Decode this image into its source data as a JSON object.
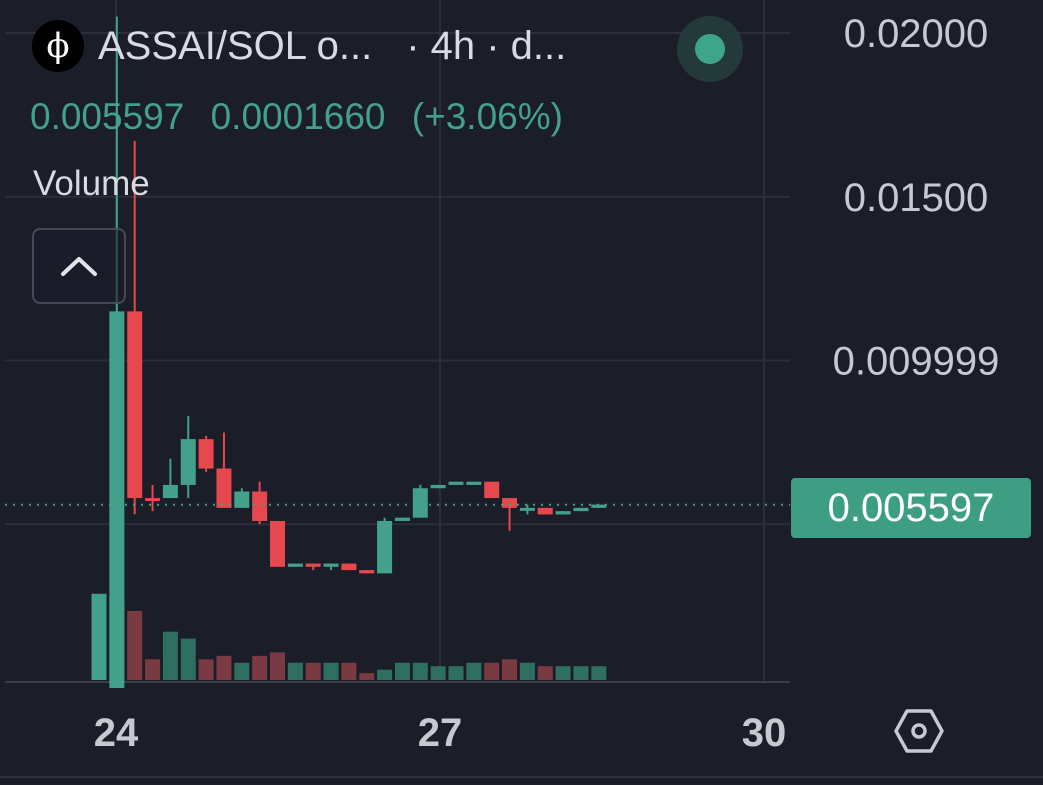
{
  "header": {
    "logo_glyph": "ϕ",
    "pair_title": "ASSAI/SOL o...",
    "interval_text": "· 4h · d...",
    "live_indicator_color": "#3fa58a"
  },
  "ohlc_bar": {
    "last": "0.005597",
    "change": "0.0001660",
    "change_pct": "(+3.06%)"
  },
  "volume_label": "Volume",
  "price_tag": "0.005597",
  "colors": {
    "background": "#1b1d29",
    "up": "#43a08a",
    "down": "#e5484d",
    "volume_up": "#2f6f60",
    "volume_down": "#7a3a42",
    "axis_text": "#c7c9d1",
    "grid": "#2b2e3b"
  },
  "chart_data": {
    "type": "candlestick",
    "y_axis_ticks": [
      "0.02000",
      "0.01500",
      "0.009999"
    ],
    "ylim": [
      0.0,
      0.0218
    ],
    "x_axis_ticks": [
      "24",
      "27",
      "30"
    ],
    "current_price": 0.005597,
    "candles": [
      {
        "x": 0,
        "open": 0.0,
        "high": 0.0,
        "low": 0.0,
        "close": 0.0,
        "volume": 0.25,
        "up": true
      },
      {
        "x": 1,
        "open": 0.0,
        "high": 0.0205,
        "low": 0.0,
        "close": 0.0115,
        "volume": 0.24,
        "up": true
      },
      {
        "x": 2,
        "open": 0.0115,
        "high": 0.0167,
        "low": 0.0053,
        "close": 0.0058,
        "volume": 0.2,
        "up": false
      },
      {
        "x": 3,
        "open": 0.0058,
        "high": 0.0062,
        "low": 0.0054,
        "close": 0.0058,
        "volume": 0.06,
        "up": false
      },
      {
        "x": 4,
        "open": 0.0058,
        "high": 0.007,
        "low": 0.0058,
        "close": 0.0062,
        "volume": 0.14,
        "up": true
      },
      {
        "x": 5,
        "open": 0.0062,
        "high": 0.0083,
        "low": 0.0058,
        "close": 0.0076,
        "volume": 0.12,
        "up": true
      },
      {
        "x": 6,
        "open": 0.0076,
        "high": 0.0077,
        "low": 0.0066,
        "close": 0.0067,
        "volume": 0.06,
        "up": false
      },
      {
        "x": 7,
        "open": 0.0067,
        "high": 0.0078,
        "low": 0.0055,
        "close": 0.0055,
        "volume": 0.07,
        "up": false
      },
      {
        "x": 8,
        "open": 0.0055,
        "high": 0.0061,
        "low": 0.0055,
        "close": 0.006,
        "volume": 0.05,
        "up": true
      },
      {
        "x": 9,
        "open": 0.006,
        "high": 0.0063,
        "low": 0.005,
        "close": 0.0051,
        "volume": 0.07,
        "up": false
      },
      {
        "x": 10,
        "open": 0.0051,
        "high": 0.0051,
        "low": 0.0037,
        "close": 0.0037,
        "volume": 0.08,
        "up": false
      },
      {
        "x": 11,
        "open": 0.0037,
        "high": 0.0038,
        "low": 0.0037,
        "close": 0.0038,
        "volume": 0.05,
        "up": true
      },
      {
        "x": 12,
        "open": 0.0038,
        "high": 0.0038,
        "low": 0.0036,
        "close": 0.0037,
        "volume": 0.05,
        "up": false
      },
      {
        "x": 13,
        "open": 0.0037,
        "high": 0.0038,
        "low": 0.0036,
        "close": 0.0038,
        "volume": 0.05,
        "up": true
      },
      {
        "x": 14,
        "open": 0.0038,
        "high": 0.0038,
        "low": 0.0036,
        "close": 0.0036,
        "volume": 0.05,
        "up": false
      },
      {
        "x": 15,
        "open": 0.0036,
        "high": 0.0036,
        "low": 0.0035,
        "close": 0.0035,
        "volume": 0.02,
        "up": false
      },
      {
        "x": 16,
        "open": 0.0035,
        "high": 0.0052,
        "low": 0.0035,
        "close": 0.0051,
        "volume": 0.03,
        "up": true
      },
      {
        "x": 17,
        "open": 0.0051,
        "high": 0.0052,
        "low": 0.0051,
        "close": 0.0052,
        "volume": 0.05,
        "up": true
      },
      {
        "x": 18,
        "open": 0.0052,
        "high": 0.0062,
        "low": 0.0052,
        "close": 0.0061,
        "volume": 0.05,
        "up": true
      },
      {
        "x": 19,
        "open": 0.0061,
        "high": 0.0062,
        "low": 0.0061,
        "close": 0.0062,
        "volume": 0.04,
        "up": true
      },
      {
        "x": 20,
        "open": 0.0062,
        "high": 0.0063,
        "low": 0.0062,
        "close": 0.0063,
        "volume": 0.04,
        "up": true
      },
      {
        "x": 21,
        "open": 0.0062,
        "high": 0.0063,
        "low": 0.0062,
        "close": 0.0063,
        "volume": 0.05,
        "up": true
      },
      {
        "x": 22,
        "open": 0.0063,
        "high": 0.0063,
        "low": 0.0058,
        "close": 0.0058,
        "volume": 0.05,
        "up": false
      },
      {
        "x": 23,
        "open": 0.0058,
        "high": 0.0058,
        "low": 0.0048,
        "close": 0.0055,
        "volume": 0.06,
        "up": false
      },
      {
        "x": 24,
        "open": 0.0055,
        "high": 0.0056,
        "low": 0.0053,
        "close": 0.0055,
        "volume": 0.05,
        "up": true
      },
      {
        "x": 25,
        "open": 0.0055,
        "high": 0.0055,
        "low": 0.0053,
        "close": 0.0053,
        "volume": 0.04,
        "up": false
      },
      {
        "x": 26,
        "open": 0.0053,
        "high": 0.0054,
        "low": 0.0053,
        "close": 0.0054,
        "volume": 0.04,
        "up": true
      },
      {
        "x": 27,
        "open": 0.0054,
        "high": 0.0055,
        "low": 0.0054,
        "close": 0.0055,
        "volume": 0.04,
        "up": true
      },
      {
        "x": 28,
        "open": 0.0055,
        "high": 0.0056,
        "low": 0.0055,
        "close": 0.0056,
        "volume": 0.04,
        "up": true
      }
    ]
  }
}
